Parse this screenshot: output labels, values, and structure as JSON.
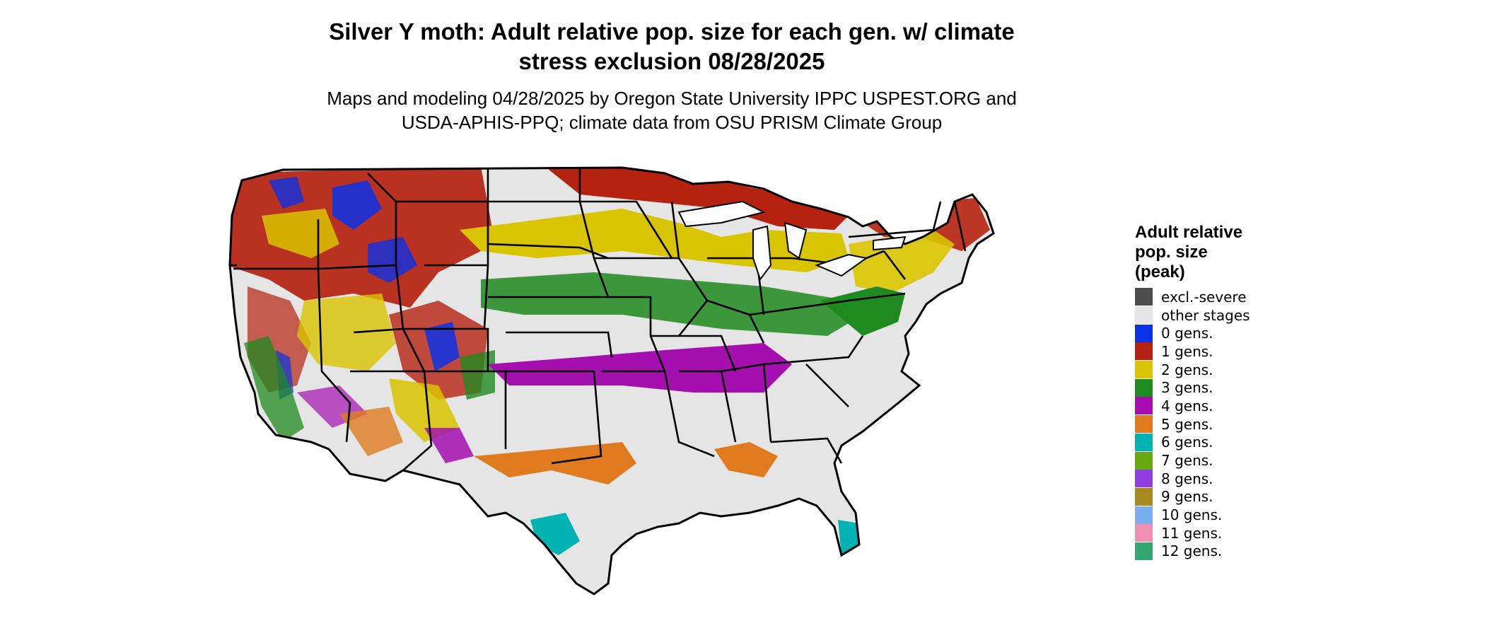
{
  "title": {
    "line1": "Silver Y moth: Adult relative pop. size for each gen. w/ climate",
    "line2": "stress exclusion 08/28/2025"
  },
  "subtitle": {
    "line1": "Maps and modeling 04/28/2025 by Oregon State University IPPC USPEST.ORG and",
    "line2": "USDA-APHIS-PPQ; climate data from OSU PRISM Climate Group"
  },
  "legend": {
    "title_line1": "Adult relative",
    "title_line2": "pop. size",
    "title_line3": "(peak)",
    "items": [
      {
        "label": "excl.-severe",
        "color": "#4d4d4d"
      },
      {
        "label": "other stages",
        "color": "#e5e5e5"
      },
      {
        "label": "0 gens.",
        "color": "#0a32e6"
      },
      {
        "label": "1 gens.",
        "color": "#b52210"
      },
      {
        "label": "2 gens.",
        "color": "#d9c400"
      },
      {
        "label": "3 gens.",
        "color": "#1f8a1f"
      },
      {
        "label": "4 gens.",
        "color": "#a50fb0"
      },
      {
        "label": "5 gens.",
        "color": "#e07a1f"
      },
      {
        "label": "6 gens.",
        "color": "#00b3b3"
      },
      {
        "label": "7 gens.",
        "color": "#66aa11"
      },
      {
        "label": "8 gens.",
        "color": "#8f3fe0"
      },
      {
        "label": "9 gens.",
        "color": "#a88a20"
      },
      {
        "label": "10 gens.",
        "color": "#7aaef0"
      },
      {
        "label": "11 gens.",
        "color": "#ef90b0"
      },
      {
        "label": "12 gens.",
        "color": "#33a870"
      }
    ]
  }
}
